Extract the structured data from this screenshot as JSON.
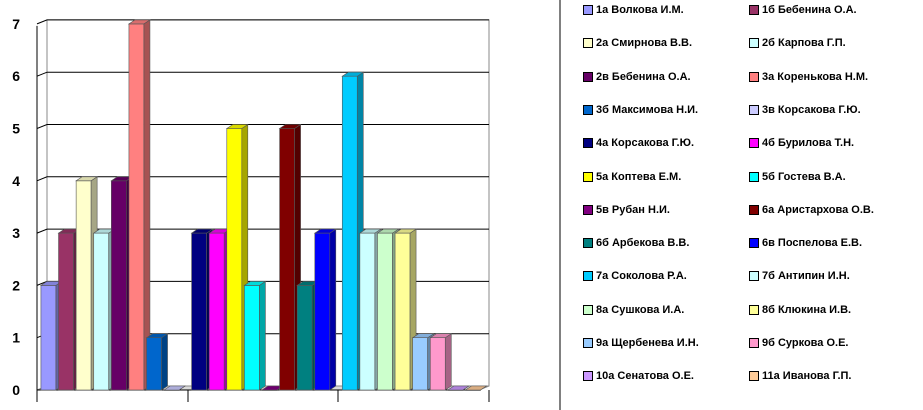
{
  "chart_data": {
    "type": "bar",
    "style": "3d-clustered-column",
    "title": "",
    "xlabel": "",
    "ylabel": "",
    "ylim": [
      0,
      7
    ],
    "yticks": [
      "0",
      "1",
      "2",
      "3",
      "4",
      "5",
      "6",
      "7"
    ],
    "grid": true,
    "legend_position": "right",
    "categories": [
      "",
      "",
      ""
    ],
    "series": [
      {
        "name": "1а Волкова И.М.",
        "color": "#9999ff",
        "values": [
          2,
          null,
          null
        ]
      },
      {
        "name": "1б Бебенина О.А.",
        "color": "#993366",
        "values": [
          3,
          null,
          null
        ]
      },
      {
        "name": "2а Смирнова В.В.",
        "color": "#ffffcc",
        "values": [
          4,
          null,
          null
        ]
      },
      {
        "name": "2б Карпова Г.П.",
        "color": "#ccffff",
        "values": [
          3,
          null,
          null
        ]
      },
      {
        "name": "2в Бебенина О.А.",
        "color": "#660066",
        "values": [
          4,
          null,
          null
        ]
      },
      {
        "name": "3а Коренькова Н.М.",
        "color": "#ff8080",
        "values": [
          7,
          null,
          null
        ]
      },
      {
        "name": "3б Максимова Н.И.",
        "color": "#0066cc",
        "values": [
          1,
          null,
          null
        ]
      },
      {
        "name": "3в Корсакова Г.Ю.",
        "color": "#ccccff",
        "values": [
          0,
          null,
          null
        ]
      },
      {
        "name": "4а Корсакова Г.Ю.",
        "color": "#000080",
        "values": [
          null,
          3,
          null
        ]
      },
      {
        "name": "4б Бурилова Т.Н.",
        "color": "#ff00ff",
        "values": [
          null,
          3,
          null
        ]
      },
      {
        "name": "5а Коптева Е.М.",
        "color": "#ffff00",
        "values": [
          null,
          5,
          null
        ]
      },
      {
        "name": "5б Гостева В.А.",
        "color": "#00ffff",
        "values": [
          null,
          2,
          null
        ]
      },
      {
        "name": "5в Рубан Н.И.",
        "color": "#800080",
        "values": [
          null,
          0,
          null
        ]
      },
      {
        "name": "6а Аристархова О.В.",
        "color": "#800000",
        "values": [
          null,
          5,
          null
        ]
      },
      {
        "name": "6б Арбекова В.В.",
        "color": "#008080",
        "values": [
          null,
          2,
          null
        ]
      },
      {
        "name": "6в Поспелова Е.В.",
        "color": "#0000ff",
        "values": [
          null,
          3,
          null
        ]
      },
      {
        "name": "7а Соколова Р.А.",
        "color": "#00ccff",
        "values": [
          null,
          null,
          6
        ]
      },
      {
        "name": "7б Антипин И.Н.",
        "color": "#ccffff",
        "values": [
          null,
          null,
          3
        ]
      },
      {
        "name": "8а Сушкова И.А.",
        "color": "#ccffcc",
        "values": [
          null,
          null,
          3
        ]
      },
      {
        "name": "8б Клюкина И.В.",
        "color": "#ffff99",
        "values": [
          null,
          null,
          3
        ]
      },
      {
        "name": "9а Щербенева И.Н.",
        "color": "#99ccff",
        "values": [
          null,
          null,
          1
        ]
      },
      {
        "name": "9б Суркова О.Е.",
        "color": "#ff99cc",
        "values": [
          null,
          null,
          1
        ]
      },
      {
        "name": "10а Сенатова О.Е.",
        "color": "#cc99ff",
        "values": [
          null,
          null,
          0
        ]
      },
      {
        "name": "11а Иванова Г.П.",
        "color": "#ffcc99",
        "values": [
          null,
          null,
          0
        ]
      }
    ]
  }
}
